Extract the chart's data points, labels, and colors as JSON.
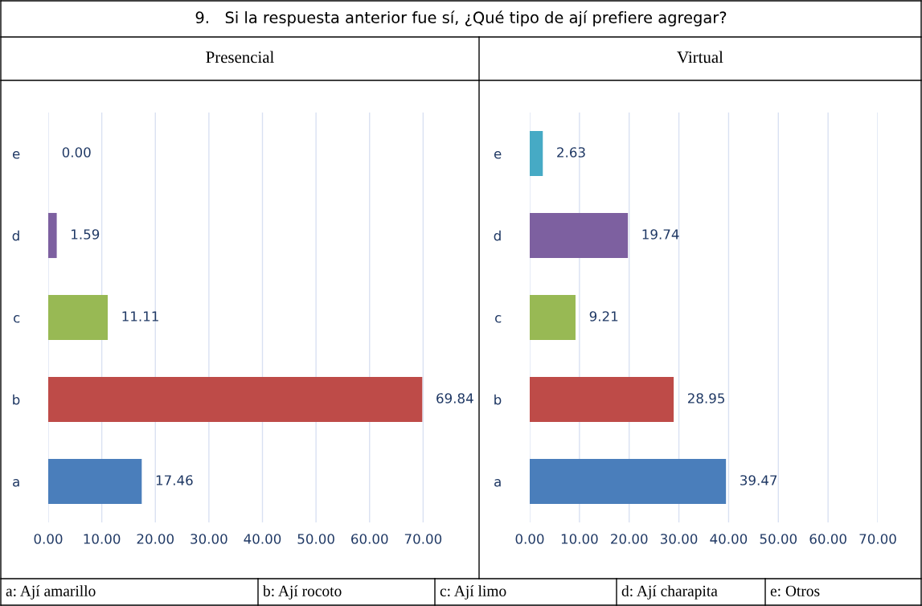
{
  "chart_data": [
    {
      "type": "bar",
      "orientation": "horizontal",
      "title": "Presencial",
      "subtitle": "9.   Si la respuesta anterior fue sí, ¿Qué tipo de ají prefiere agregar?",
      "categories": [
        "e",
        "d",
        "c",
        "b",
        "a"
      ],
      "values": [
        0,
        1.59,
        11.11,
        69.84,
        17.46
      ],
      "colors": [
        "#46aac5",
        "#7d60a0",
        "#98b954",
        "#be4b48",
        "#4a7ebb"
      ],
      "value_labels": [
        "0.00",
        "1.59",
        "11.11",
        "69.84",
        "17.46"
      ],
      "xlim": [
        0,
        80
      ],
      "xticks": [
        {
          "value": 0,
          "label": "0.00"
        },
        {
          "value": 10,
          "label": "10.00"
        },
        {
          "value": 20,
          "label": "20.00"
        },
        {
          "value": 30,
          "label": "30.00"
        },
        {
          "value": 40,
          "label": "40.00"
        },
        {
          "value": 50,
          "label": "50.00"
        },
        {
          "value": 60,
          "label": "60.00"
        },
        {
          "value": 70,
          "label": "70.00"
        }
      ],
      "grid": "x",
      "annotations": [
        "a: Ají amarillo",
        "b: Ají rocoto",
        "c: Ají limo",
        "d: Ají charapita",
        "e: Otros"
      ]
    },
    {
      "type": "bar",
      "orientation": "horizontal",
      "title": "Virtual",
      "categories": [
        "e",
        "d",
        "c",
        "b",
        "a"
      ],
      "values": [
        2.63,
        19.74,
        9.21,
        28.95,
        39.47
      ],
      "colors": [
        "#46aac5",
        "#7d60a0",
        "#98b954",
        "#be4b48",
        "#4a7ebb"
      ],
      "value_labels": [
        "2.63",
        "19.74",
        "9.21",
        "28.95",
        "39.47"
      ],
      "xlim": [
        0,
        70
      ],
      "xticks": [
        {
          "value": 0,
          "label": "0.00"
        },
        {
          "value": 10,
          "label": "10.00"
        },
        {
          "value": 20,
          "label": "20.00"
        },
        {
          "value": 30,
          "label": "30.00"
        },
        {
          "value": 40,
          "label": "40.00"
        },
        {
          "value": 50,
          "label": "50.00"
        },
        {
          "value": 60,
          "label": "60.00"
        },
        {
          "value": 70,
          "label": "70.00"
        }
      ],
      "grid": "x"
    }
  ]
}
